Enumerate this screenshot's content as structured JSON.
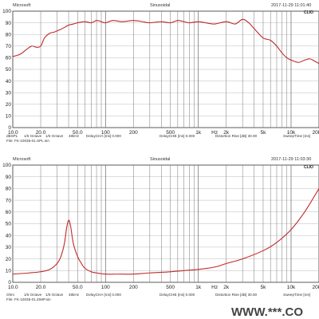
{
  "charts": [
    {
      "header": {
        "left": "Microsoft",
        "center": "Sinusoidal",
        "right": "2017-11-29 11:01:40"
      },
      "logo": "CLIO",
      "footer_row1": [
        "dBSPL",
        "1/6 Octave",
        "1/6 Octave",
        "48kHz",
        "DelayCHA [ms] 0.000",
        "DelayCHB [ms] 0.000",
        "Distortion Rise [dB] 30.00",
        "SweepTime [ms]"
      ],
      "footer_row2": "File: FK-10035-01.SPL.sin"
    },
    {
      "header": {
        "left": "Microsoft",
        "center": "Sinusoidal",
        "right": "2017-11-29 11:03:30"
      },
      "logo": "CLIO",
      "footer_row1": [
        "Ohm",
        "1/6 Octave",
        "1/6 Octave",
        "48kHz",
        "DelayCHA [ms] 0.000",
        "DelayCHB [ms] 0.000",
        "Distortion Rise [dB] 30.00",
        "SweepTime [ms]"
      ],
      "footer_row2": "File: FK-10035-01.ZIMP.sin"
    }
  ],
  "watermark": "WWW.***.CO",
  "colors": {
    "curve": "#c0282b",
    "grid": "#777777",
    "frame": "#333333",
    "hline": "#bbbbbb"
  },
  "chart_data": [
    {
      "type": "line",
      "x_scale": "log",
      "xlim": [
        10,
        20000
      ],
      "ylim": [
        0,
        100
      ],
      "x_ticks": [
        {
          "v": 10,
          "label": "10.0"
        },
        {
          "v": 20,
          "label": "20.0"
        },
        {
          "v": 50,
          "label": "50.0"
        },
        {
          "v": 100,
          "label": "100"
        },
        {
          "v": 200,
          "label": "200"
        },
        {
          "v": 500,
          "label": "500"
        },
        {
          "v": 1000,
          "label": "1k"
        },
        {
          "v": 1500,
          "label": "Hz"
        },
        {
          "v": 2000,
          "label": "2k"
        },
        {
          "v": 5000,
          "label": "5k"
        },
        {
          "v": 10000,
          "label": "10k"
        },
        {
          "v": 20000,
          "label": "20k"
        }
      ],
      "y_ticks": [
        0,
        10,
        20,
        30,
        40,
        50,
        60,
        70,
        80,
        90,
        100
      ],
      "series": [
        {
          "x": [
            10,
            12,
            14,
            16,
            18,
            20,
            22,
            25,
            28,
            32,
            36,
            40,
            45,
            50,
            60,
            70,
            80,
            90,
            100,
            120,
            150,
            200,
            250,
            300,
            400,
            500,
            600,
            700,
            800,
            1000,
            1200,
            1500,
            2000,
            2500,
            3000,
            3500,
            4000,
            5000,
            6000,
            7000,
            8000,
            9000,
            10000,
            12000,
            14000,
            16000,
            18000,
            20000
          ],
          "y": [
            61,
            63,
            67,
            70,
            69,
            70,
            77,
            81,
            82,
            84,
            86,
            88,
            89,
            90,
            91,
            90,
            92,
            91,
            90,
            92,
            91,
            92,
            91,
            90,
            91,
            90,
            92,
            91,
            90,
            91,
            90,
            89,
            91,
            89,
            93,
            90,
            85,
            77,
            75,
            70,
            64,
            60,
            58,
            56,
            58,
            59,
            57,
            55
          ]
        }
      ]
    },
    {
      "type": "line",
      "x_scale": "log",
      "xlim": [
        10,
        20000
      ],
      "ylim": [
        0,
        100
      ],
      "x_ticks": [
        {
          "v": 10,
          "label": "10.0"
        },
        {
          "v": 20,
          "label": "20.0"
        },
        {
          "v": 50,
          "label": "50.0"
        },
        {
          "v": 100,
          "label": "100"
        },
        {
          "v": 200,
          "label": "200"
        },
        {
          "v": 500,
          "label": "500"
        },
        {
          "v": 1000,
          "label": "1k"
        },
        {
          "v": 1500,
          "label": "Hz"
        },
        {
          "v": 2000,
          "label": "2k"
        },
        {
          "v": 5000,
          "label": "5k"
        },
        {
          "v": 10000,
          "label": "10k"
        },
        {
          "v": 20000,
          "label": "20k"
        }
      ],
      "y_ticks": [
        0,
        10,
        20,
        30,
        40,
        50,
        60,
        70,
        80,
        90,
        100
      ],
      "series": [
        {
          "x": [
            10,
            15,
            20,
            25,
            30,
            33,
            36,
            38,
            40,
            42,
            45,
            50,
            55,
            60,
            70,
            80,
            100,
            150,
            200,
            300,
            500,
            700,
            1000,
            1500,
            2000,
            3000,
            5000,
            7000,
            10000,
            14000,
            20000
          ],
          "y": [
            7,
            8,
            9,
            11,
            16,
            22,
            33,
            46,
            53,
            48,
            33,
            22,
            16,
            12,
            9,
            8,
            7,
            7,
            7,
            8,
            9,
            10,
            11,
            13,
            16,
            20,
            27,
            34,
            45,
            60,
            80
          ]
        }
      ]
    }
  ]
}
